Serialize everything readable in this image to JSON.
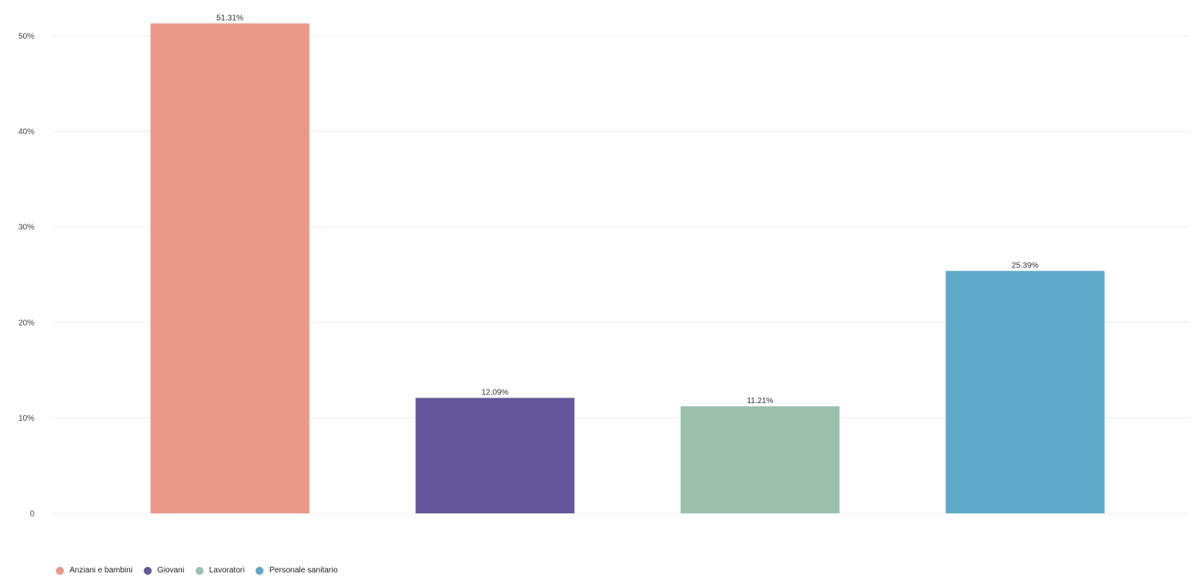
{
  "chart_data": {
    "type": "bar",
    "categories": [
      "Anziani e bambini",
      "Giovani",
      "Lavoratori",
      "Personale sanitario"
    ],
    "values": [
      51.31,
      12.09,
      11.21,
      25.39
    ],
    "value_labels": [
      "51.31%",
      "12.09%",
      "11.21%",
      "25.39%"
    ],
    "colors": [
      "#ea9888",
      "#635799",
      "#9bc0ae",
      "#5ea9c8"
    ],
    "ylim": [
      0,
      51.31
    ],
    "yticks": [
      {
        "value": 0,
        "label": "0"
      },
      {
        "value": 10,
        "label": "10%"
      },
      {
        "value": 20,
        "label": "20%"
      },
      {
        "value": 30,
        "label": "30%"
      },
      {
        "value": 40,
        "label": "40%"
      },
      {
        "value": 50,
        "label": "50%"
      }
    ],
    "grid": true,
    "legend_position": "bottom-left",
    "title": "",
    "xlabel": "",
    "ylabel": ""
  },
  "legend": {
    "items": [
      {
        "label": "Anziani e bambini",
        "color": "#ea9888"
      },
      {
        "label": "Giovani",
        "color": "#635799"
      },
      {
        "label": "Lavoratori",
        "color": "#9bc0ae"
      },
      {
        "label": "Personale sanitario",
        "color": "#5ea9c8"
      }
    ]
  }
}
